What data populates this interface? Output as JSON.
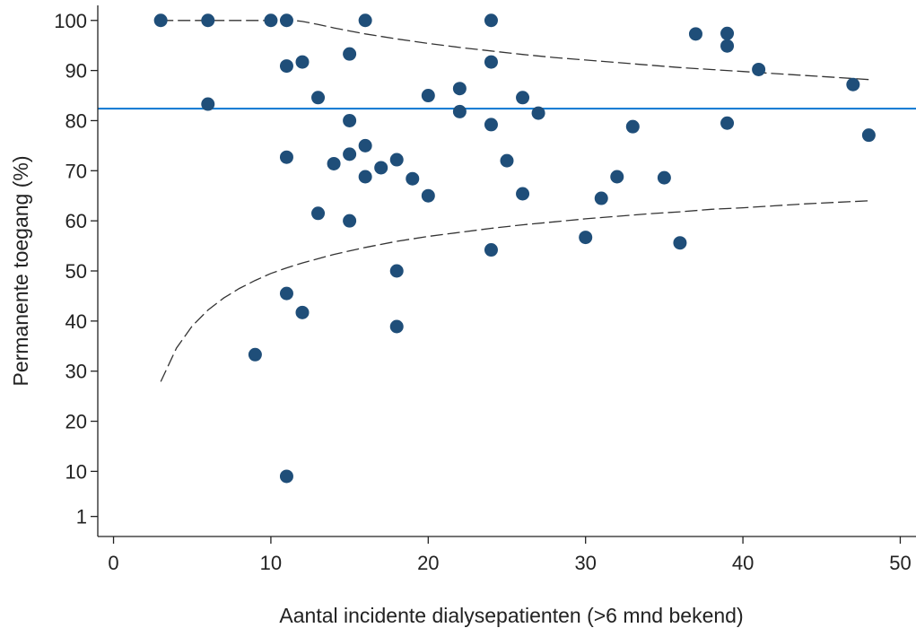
{
  "chart_data": {
    "type": "scatter",
    "xlabel": "Aantal incidente dialysepatienten (>6 mnd bekend)",
    "ylabel": "Permanente toegang (%)",
    "xlim": [
      -1,
      51
    ],
    "ylim": [
      -3,
      103
    ],
    "x_ticks": [
      0,
      10,
      20,
      30,
      40,
      50
    ],
    "y_ticks": [
      1,
      10,
      20,
      30,
      40,
      50,
      60,
      70,
      80,
      90,
      100
    ],
    "grid": false,
    "legend": "none",
    "reference_line": {
      "y": 82.4,
      "color": "#1a7fd4"
    },
    "control_limits": {
      "upper": [
        [
          3,
          100
        ],
        [
          5,
          100
        ],
        [
          8,
          100
        ],
        [
          10,
          100
        ],
        [
          11.5,
          100
        ],
        [
          12,
          99.8
        ],
        [
          13,
          99.2
        ],
        [
          14,
          98.5
        ],
        [
          15,
          97.9
        ],
        [
          16,
          97.3
        ],
        [
          18,
          96.3
        ],
        [
          20,
          95.4
        ],
        [
          22,
          94.6
        ],
        [
          24,
          93.9
        ],
        [
          26,
          93.2
        ],
        [
          28,
          92.6
        ],
        [
          30,
          92.1
        ],
        [
          32,
          91.6
        ],
        [
          34,
          91.1
        ],
        [
          36,
          90.6
        ],
        [
          38,
          90.2
        ],
        [
          40,
          89.8
        ],
        [
          42,
          89.4
        ],
        [
          44,
          89.0
        ],
        [
          46,
          88.6
        ],
        [
          48,
          88.2
        ]
      ],
      "lower": [
        [
          3,
          27.9
        ],
        [
          4,
          34.6
        ],
        [
          5,
          39.0
        ],
        [
          6,
          42.2
        ],
        [
          7,
          44.6
        ],
        [
          8,
          46.5
        ],
        [
          9,
          48.1
        ],
        [
          10,
          49.5
        ],
        [
          11,
          50.6
        ],
        [
          12,
          51.6
        ],
        [
          14,
          53.3
        ],
        [
          16,
          54.7
        ],
        [
          18,
          55.9
        ],
        [
          20,
          56.9
        ],
        [
          22,
          57.7
        ],
        [
          24,
          58.5
        ],
        [
          26,
          59.2
        ],
        [
          28,
          59.8
        ],
        [
          30,
          60.4
        ],
        [
          32,
          60.9
        ],
        [
          34,
          61.4
        ],
        [
          36,
          61.8
        ],
        [
          38,
          62.3
        ],
        [
          40,
          62.6
        ],
        [
          42,
          63.0
        ],
        [
          44,
          63.4
        ],
        [
          46,
          63.7
        ],
        [
          48,
          64.0
        ]
      ],
      "color": "#333333",
      "style": "dashed"
    },
    "series": [
      {
        "color": "#1f4e79",
        "points": [
          [
            3,
            100
          ],
          [
            6,
            100
          ],
          [
            6,
            83.3
          ],
          [
            9,
            33.3
          ],
          [
            10,
            100
          ],
          [
            11,
            100
          ],
          [
            11,
            90.9
          ],
          [
            11,
            72.7
          ],
          [
            11,
            45.5
          ],
          [
            11,
            9
          ],
          [
            12,
            91.7
          ],
          [
            12,
            41.7
          ],
          [
            13,
            84.6
          ],
          [
            13,
            61.5
          ],
          [
            14,
            71.4
          ],
          [
            15,
            93.3
          ],
          [
            15,
            80
          ],
          [
            15,
            73.3
          ],
          [
            15,
            60
          ],
          [
            16,
            100
          ],
          [
            16,
            75
          ],
          [
            16,
            68.8
          ],
          [
            17,
            70.6
          ],
          [
            18,
            72.2
          ],
          [
            18,
            50
          ],
          [
            18,
            38.9
          ],
          [
            19,
            68.4
          ],
          [
            20,
            85
          ],
          [
            20,
            65
          ],
          [
            22,
            86.4
          ],
          [
            22,
            81.8
          ],
          [
            24,
            100
          ],
          [
            24,
            91.7
          ],
          [
            24,
            79.2
          ],
          [
            24,
            54.2
          ],
          [
            25,
            72
          ],
          [
            26,
            84.6
          ],
          [
            26,
            65.4
          ],
          [
            27,
            81.5
          ],
          [
            30,
            56.7
          ],
          [
            31,
            64.5
          ],
          [
            32,
            68.8
          ],
          [
            33,
            78.8
          ],
          [
            35,
            68.6
          ],
          [
            36,
            55.6
          ],
          [
            37,
            97.3
          ],
          [
            39,
            97.4
          ],
          [
            39,
            94.9
          ],
          [
            39,
            79.5
          ],
          [
            41,
            90.2
          ],
          [
            47,
            87.2
          ],
          [
            48,
            77.1
          ]
        ]
      }
    ]
  }
}
